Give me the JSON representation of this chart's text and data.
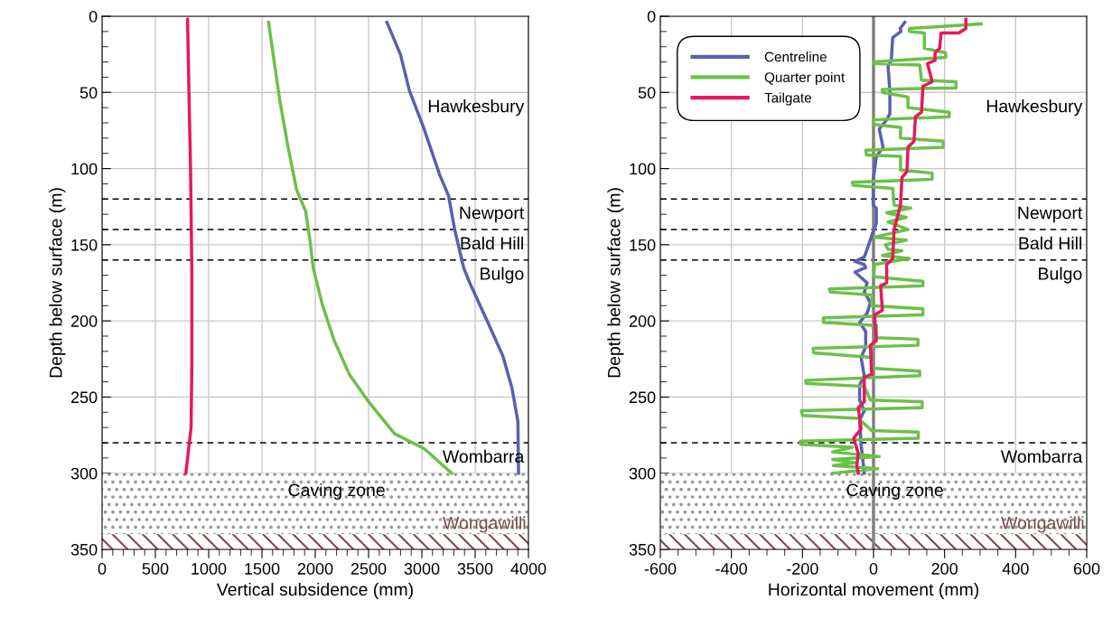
{
  "chart_data": [
    {
      "type": "line",
      "xlabel": "Vertical subsidence (mm)",
      "ylabel": "Depth below surface (m)",
      "xlim": [
        0,
        4000
      ],
      "xticks": [
        0,
        500,
        1000,
        1500,
        2000,
        2500,
        3000,
        3500,
        4000
      ],
      "ylim": [
        350,
        0
      ],
      "yticks": [
        0,
        50,
        100,
        150,
        200,
        250,
        300,
        350
      ],
      "grid": true,
      "legend": false,
      "ref_lines": [
        {
          "axis": "y",
          "value": 120,
          "label": "Newport",
          "color": "#000000",
          "line_style": "dashed"
        },
        {
          "axis": "y",
          "value": 140,
          "label": "Bald Hill",
          "color": "#000000",
          "line_style": "dashed"
        },
        {
          "axis": "y",
          "value": 160,
          "label": "Bulgo",
          "color": "#000000",
          "line_style": "dashed"
        },
        {
          "axis": "y",
          "value": 280,
          "label": "Wombarra",
          "color": "#000000",
          "line_style": "dashed"
        }
      ],
      "annotations": [
        "Hawkesbury"
      ],
      "bands": [
        {
          "axis": "y",
          "from": 300,
          "to": 340,
          "label": "Caving zone",
          "color": "#9a9a9a"
        },
        {
          "axis": "y",
          "from": 340,
          "to": 350,
          "label": "Wongawilli",
          "color": "#7b4a4a"
        }
      ],
      "series": [
        {
          "color": "#5b5fb0",
          "x": [
            2672,
            2799,
            2884,
            3011,
            3167,
            3251,
            3308,
            3392,
            3449,
            3619,
            3760,
            3845,
            3901,
            3907
          ],
          "values": [
            4,
            25,
            49,
            72,
            104,
            118,
            140,
            165,
            175,
            201,
            223,
            244,
            266,
            300
          ]
        },
        {
          "color": "#6cc04a",
          "x": [
            1562,
            1613,
            1669,
            1740,
            1825,
            1910,
            1952,
            1980,
            2065,
            2178,
            2319,
            2489,
            2743,
            3025,
            3280
          ],
          "values": [
            4,
            29,
            56,
            84,
            114,
            128,
            148,
            165,
            189,
            213,
            235,
            252,
            274,
            284,
            300
          ]
        },
        {
          "color": "#e8175d",
          "x": [
            802,
            815,
            830,
            842,
            842,
            835,
            786
          ],
          "values": [
            2,
            50,
            100,
            167,
            230,
            270,
            300
          ]
        }
      ]
    },
    {
      "type": "line",
      "xlabel": "Horizontal movement (mm)",
      "ylabel": "Depth below surface (m)",
      "xlim": [
        -600,
        600
      ],
      "xticks": [
        -600,
        -400,
        -200,
        0,
        200,
        400,
        600
      ],
      "ylim": [
        350,
        0
      ],
      "yticks": [
        0,
        50,
        100,
        150,
        200,
        250,
        300,
        350
      ],
      "grid": true,
      "legend": "top left",
      "ref_lines": [
        {
          "axis": "y",
          "value": 120,
          "label": "Newport",
          "color": "#000000",
          "line_style": "dashed"
        },
        {
          "axis": "y",
          "value": 140,
          "label": "Bald Hill",
          "color": "#000000",
          "line_style": "dashed"
        },
        {
          "axis": "y",
          "value": 160,
          "label": "Bulgo",
          "color": "#000000",
          "line_style": "dashed"
        },
        {
          "axis": "y",
          "value": 280,
          "label": "Wombarra",
          "color": "#000000",
          "line_style": "dashed"
        },
        {
          "axis": "x",
          "value": 0,
          "color": "#808080",
          "line_style": "solid"
        }
      ],
      "annotations": [
        "Hawkesbury"
      ],
      "bands": [
        {
          "axis": "y",
          "from": 300,
          "to": 340,
          "label": "Caving zone",
          "color": "#9a9a9a"
        },
        {
          "axis": "y",
          "from": 340,
          "to": 350,
          "label": "Wongawilli",
          "color": "#7b4a4a"
        }
      ],
      "series": [
        {
          "name": "Centreline",
          "color": "#5b5fb0",
          "x": [
            88,
            75,
            77,
            54,
            50,
            41,
            46,
            46,
            37,
            16,
            25,
            27,
            8,
            -1,
            -1,
            8,
            8,
            -5,
            -18,
            -26,
            -52,
            -26,
            -22,
            -52,
            -18,
            -26,
            -9,
            -18,
            -39,
            -22,
            -22,
            -35,
            -26,
            -39,
            -39,
            -26,
            -39,
            -35,
            -26
          ],
          "values": [
            4,
            8,
            10,
            14,
            29,
            33,
            49,
            64,
            68,
            74,
            84,
            86,
            92,
            108,
            124,
            126,
            136,
            144,
            153,
            158,
            161,
            163,
            165,
            168,
            175,
            181,
            188,
            195,
            201,
            207,
            217,
            224,
            236,
            242,
            252,
            259,
            265,
            281,
            300
          ]
        },
        {
          "name": "Quarter point",
          "color": "#6cc04a",
          "x": [
            303,
            101,
            101,
            143,
            143,
            203,
            203,
            1,
            1,
            130,
            135,
            232,
            232,
            25,
            25,
            97,
            97,
            213,
            213,
            -1,
            0,
            76,
            76,
            196,
            196,
            -22,
            -20,
            76,
            76,
            165,
            165,
            -60,
            -57,
            54,
            58,
            105,
            37,
            92,
            41,
            97,
            3,
            92,
            33,
            41,
            80,
            25,
            101,
            3,
            1,
            139,
            139,
            -124,
            -122,
            -5,
            -5,
            139,
            139,
            -141,
            -141,
            8,
            8,
            125,
            125,
            -170,
            -168,
            -5,
            -5,
            130,
            130,
            -191,
            -190,
            -26,
            -9,
            137,
            137,
            -203,
            -200,
            -43,
            -5,
            126,
            126,
            -206,
            -205,
            -60,
            -115,
            16,
            -115,
            -52,
            -113,
            12,
            -115
          ],
          "values": [
            5,
            8,
            10,
            11,
            21,
            24,
            27,
            30,
            31,
            32,
            42,
            43,
            47,
            48,
            50,
            53,
            60,
            63,
            66,
            68,
            71,
            73,
            80,
            82,
            86,
            88,
            91,
            92,
            101,
            103,
            107,
            109,
            111,
            113,
            124,
            126,
            129,
            132,
            135,
            140,
            145,
            147,
            150,
            153,
            154,
            157,
            159,
            163,
            171,
            174,
            177,
            179,
            181,
            183,
            190,
            192,
            196,
            198,
            201,
            203,
            211,
            212,
            216,
            218,
            221,
            224,
            231,
            233,
            236,
            239,
            241,
            243,
            252,
            253,
            257,
            259,
            262,
            264,
            272,
            273,
            277,
            279,
            281,
            283,
            286,
            289,
            291,
            293,
            295,
            297,
            300
          ]
        },
        {
          "name": "Tailgate",
          "color": "#e8175d",
          "x": [
            260,
            260,
            240,
            190,
            186,
            173,
            173,
            152,
            165,
            139,
            135,
            118,
            114,
            97,
            94,
            80,
            76,
            58,
            54,
            37,
            37,
            20,
            25,
            3,
            8,
            -9,
            -5,
            -26,
            -26,
            -43,
            -35,
            -56,
            -43,
            -47,
            -43
          ],
          "values": [
            2,
            8,
            11,
            11,
            21,
            24,
            29,
            31,
            43,
            46,
            63,
            66,
            82,
            86,
            102,
            106,
            124,
            140,
            159,
            163,
            175,
            177,
            193,
            196,
            213,
            216,
            235,
            237,
            253,
            257,
            271,
            277,
            287,
            295,
            300
          ]
        }
      ]
    }
  ]
}
